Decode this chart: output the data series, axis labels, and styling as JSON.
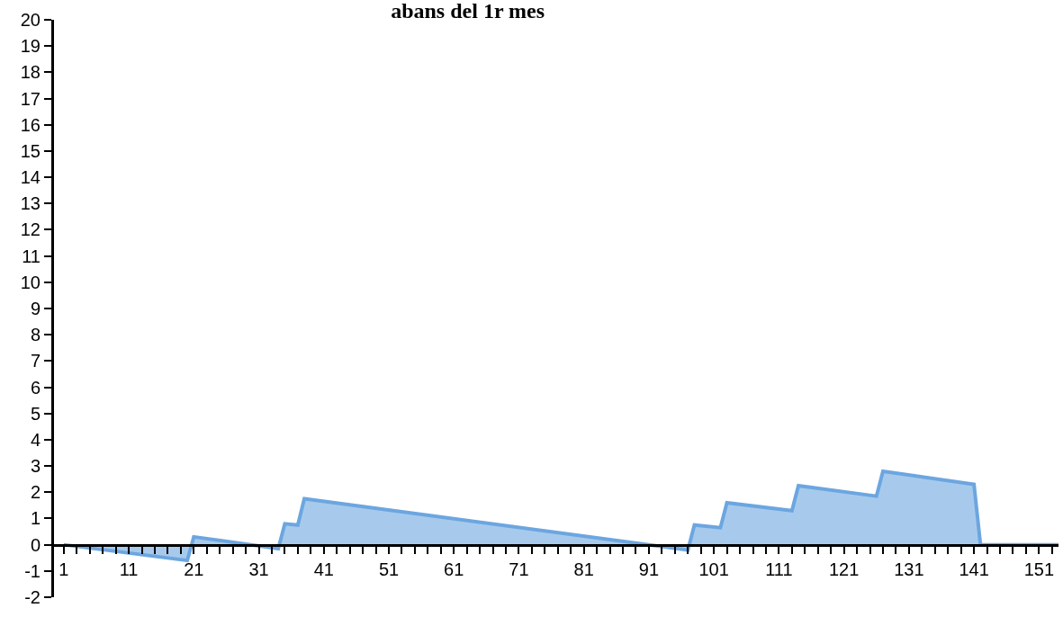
{
  "chart_data": {
    "type": "area",
    "title": "abans del 1r mes",
    "x": [
      1,
      20,
      21,
      34,
      35,
      37,
      38,
      97,
      98,
      102,
      103,
      113,
      114,
      126,
      127,
      141,
      142,
      154
    ],
    "series": [
      {
        "color": "#6ca6e0",
        "values": [
          0,
          -0.6,
          0.3,
          -0.15,
          0.8,
          0.75,
          1.75,
          -0.2,
          0.75,
          0.65,
          1.6,
          1.3,
          2.25,
          1.85,
          2.8,
          2.3,
          0,
          0
        ]
      }
    ],
    "xlim": [
      -0.5,
      154
    ],
    "xticks": [
      1,
      11,
      21,
      31,
      41,
      51,
      61,
      71,
      81,
      91,
      101,
      111,
      121,
      131,
      141,
      151
    ],
    "ylim": [
      -2,
      20
    ],
    "yticks": [
      -2,
      -1,
      0,
      1,
      2,
      3,
      4,
      5,
      6,
      7,
      8,
      9,
      10,
      11,
      12,
      13,
      14,
      15,
      16,
      17,
      18,
      19,
      20
    ],
    "marker": "none",
    "line_style": "solid"
  }
}
